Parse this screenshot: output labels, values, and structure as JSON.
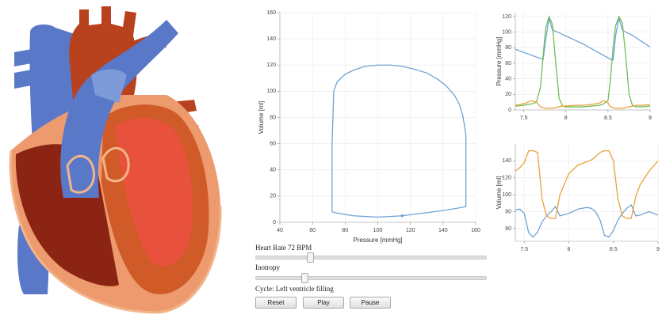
{
  "chart_data": [
    {
      "type": "line",
      "xlabel": "Pressure [mmHg]",
      "ylabel": "Volume [ml]",
      "x": [
        72,
        72,
        73,
        75,
        80,
        85,
        92,
        100,
        108,
        115,
        122,
        130,
        137,
        142,
        147,
        150,
        152,
        153,
        154,
        154,
        150,
        140,
        128,
        115,
        108,
        100,
        92,
        85,
        80,
        75,
        72
      ],
      "series": [
        {
          "color": "#6fa3d6",
          "values": [
            8,
            60,
            100,
            107,
            113,
            116,
            119,
            120,
            120,
            119,
            117,
            114,
            109,
            104,
            97,
            90,
            82,
            75,
            66,
            12,
            11,
            9,
            7,
            5,
            4.5,
            4,
            4.5,
            5,
            6,
            7,
            8
          ]
        }
      ],
      "point": {
        "x": 115,
        "y": 5
      },
      "xlim": [
        40,
        160
      ],
      "ylim": [
        0,
        160
      ],
      "xticks": [
        40,
        60,
        80,
        100,
        120,
        140,
        160
      ],
      "yticks": [
        0,
        20,
        40,
        60,
        80,
        100,
        120,
        140,
        160
      ],
      "grid": true
    },
    {
      "type": "line",
      "ylabel": "Pressure [mmHg]",
      "x": [
        7.4,
        7.5,
        7.6,
        7.65,
        7.7,
        7.73,
        7.76,
        7.8,
        7.84,
        7.88,
        7.92,
        7.96,
        8.0,
        8.1,
        8.2,
        8.3,
        8.4,
        8.45,
        8.5,
        8.53,
        8.56,
        8.59,
        8.63,
        8.67,
        8.71,
        8.75,
        8.79,
        8.83,
        8.9,
        9.0
      ],
      "series": [
        {
          "color": "#6fa3d6",
          "values": [
            78,
            74,
            70,
            68,
            66,
            65,
            90,
            118,
            103,
            101,
            99,
            97,
            95,
            90,
            85,
            79,
            73,
            70,
            67,
            65,
            64,
            95,
            118,
            103,
            100,
            98,
            96,
            93,
            88,
            81
          ]
        },
        {
          "color": "#6fbf5a",
          "values": [
            5,
            6,
            8,
            10,
            30,
            70,
            105,
            120,
            110,
            60,
            15,
            5,
            4,
            4,
            4,
            5,
            6,
            8,
            12,
            40,
            80,
            108,
            120,
            112,
            70,
            20,
            6,
            4,
            4,
            5
          ]
        },
        {
          "color": "#e8a23a",
          "values": [
            6,
            8,
            12,
            10,
            4,
            3,
            2,
            2,
            2,
            3,
            4,
            5,
            5,
            6,
            6,
            7,
            9,
            12,
            9,
            4,
            3,
            2,
            2,
            2,
            3,
            4,
            5,
            6,
            6,
            7
          ]
        }
      ],
      "xlim": [
        7.4,
        9.0
      ],
      "ylim": [
        0,
        125
      ],
      "xticks": [
        7.5,
        8,
        8.5,
        9
      ],
      "yticks": [
        0,
        20,
        40,
        60,
        80,
        100,
        120
      ],
      "grid": true
    },
    {
      "type": "line",
      "ylabel": "Volume [ml]",
      "x": [
        7.4,
        7.45,
        7.5,
        7.55,
        7.6,
        7.65,
        7.7,
        7.75,
        7.8,
        7.85,
        7.9,
        8.0,
        8.1,
        8.2,
        8.25,
        8.3,
        8.35,
        8.4,
        8.45,
        8.5,
        8.55,
        8.6,
        8.65,
        8.7,
        8.75,
        8.8,
        8.9,
        9.0
      ],
      "series": [
        {
          "color": "#6fa3d6",
          "values": [
            82,
            83,
            78,
            55,
            50,
            56,
            68,
            75,
            80,
            86,
            75,
            78,
            83,
            85,
            84,
            80,
            70,
            52,
            50,
            58,
            70,
            78,
            84,
            88,
            75,
            76,
            80,
            76
          ]
        },
        {
          "color": "#e8a23a",
          "values": [
            128,
            132,
            138,
            152,
            152,
            150,
            95,
            75,
            72,
            72,
            100,
            125,
            135,
            139,
            141,
            145,
            150,
            152,
            152,
            140,
            95,
            75,
            72,
            72,
            98,
            112,
            128,
            140
          ]
        }
      ],
      "xlim": [
        7.4,
        9.0
      ],
      "ylim": [
        45,
        160
      ],
      "xticks": [
        7.5,
        8,
        8.5,
        9
      ],
      "yticks": [
        60,
        80,
        100,
        120,
        140
      ],
      "grid": true
    }
  ],
  "controls": {
    "heart_rate_label": "Heart Rate 72 BPM",
    "inotropy_label": "Inotropy",
    "cycle_label": "Cycle: Left ventricle filling",
    "buttons": [
      "Reset",
      "Play",
      "Pause"
    ]
  }
}
